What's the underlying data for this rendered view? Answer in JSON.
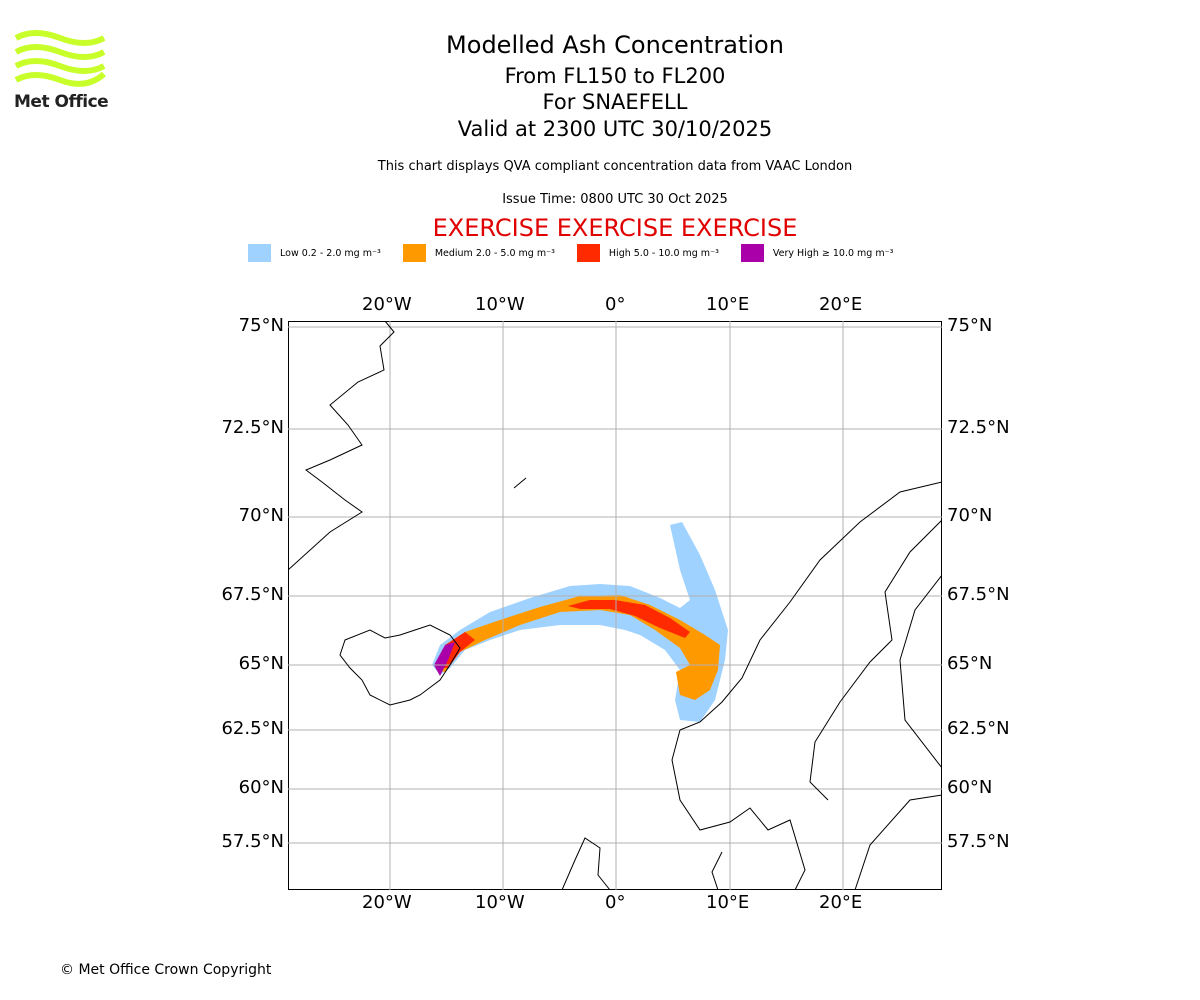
{
  "logo": {
    "text": "Met Office",
    "color": "#c8ff2a"
  },
  "title": {
    "main": "Modelled Ash Concentration",
    "levels": "From FL150 to FL200",
    "volcano": "For SNAEFELL",
    "valid": "Valid at 2300 UTC 30/10/2025"
  },
  "subtitle": "This chart displays QVA compliant concentration data from VAAC London",
  "issue_time": "Issue Time: 0800 UTC 30 Oct 2025",
  "exercise": "EXERCISE EXERCISE EXERCISE",
  "legend": [
    {
      "label": "Low 0.2 - 2.0 mg m⁻³",
      "color": "#a0d2ff"
    },
    {
      "label": "Medium 2.0 - 5.0 mg m⁻³",
      "color": "#ff9900"
    },
    {
      "label": "High 5.0 - 10.0 mg m⁻³",
      "color": "#ff2a00"
    },
    {
      "label": "Very High ≥ 10.0 mg m⁻³",
      "color": "#aa00aa"
    }
  ],
  "lon_ticks": [
    "20°W",
    "10°W",
    "0°",
    "10°E",
    "20°E"
  ],
  "lat_ticks": [
    "75°N",
    "72.5°N",
    "70°N",
    "67.5°N",
    "65°N",
    "62.5°N",
    "60°N",
    "57.5°N"
  ],
  "copyright": "© Met Office Crown Copyright"
}
